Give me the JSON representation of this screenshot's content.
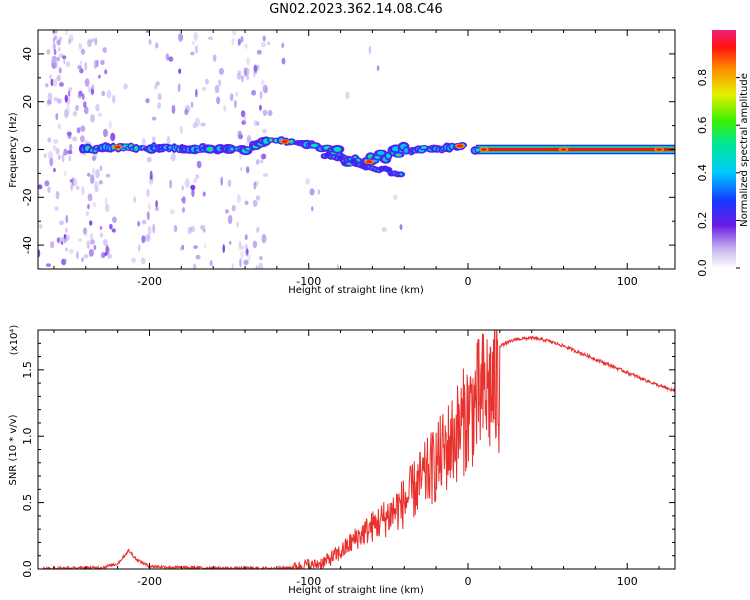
{
  "title": "GN02.2023.362.14.08.C46",
  "chart_data": [
    {
      "type": "heatmap",
      "xlabel": "Height of straight line (km)",
      "ylabel": "Frequency (Hz)",
      "xlim": [
        -270,
        130
      ],
      "ylim": [
        -50,
        50
      ],
      "xticks": [
        -200,
        -100,
        0,
        100
      ],
      "yticks": [
        -40,
        -20,
        0,
        20,
        40
      ],
      "colorbar": {
        "label": "Normalized spectral amplitude",
        "range": [
          0,
          1
        ],
        "ticks": [
          "0.0",
          "0.2",
          "0.4",
          "0.6",
          "0.8"
        ],
        "colormap": "rainbow-light-purple-to-magenta"
      },
      "ridge": {
        "x": [
          -240,
          -220,
          -200,
          -180,
          -160,
          -140,
          -125,
          -110,
          -95,
          -85,
          -75,
          -65,
          -55,
          -45,
          -35,
          -25,
          -15,
          -5,
          5,
          130
        ],
        "y": [
          0,
          1,
          0.5,
          0.5,
          0,
          0,
          4,
          3,
          2,
          0,
          -4,
          -6,
          -3,
          -1,
          -0.5,
          0.5,
          0.5,
          1.5,
          0,
          0
        ],
        "peak_x": [
          -220,
          -115,
          -62,
          -5,
          10,
          60,
          120
        ]
      }
    },
    {
      "type": "line",
      "xlabel": "Height of straight line (km)",
      "ylabel": "SNR (10 * v/v)",
      "y_multiplier": "(x10⁴)",
      "xlim": [
        -270,
        130
      ],
      "ylim": [
        0,
        1.8
      ],
      "xticks": [
        -200,
        -100,
        0,
        100
      ],
      "yticks": [
        0.0,
        0.5,
        1.0,
        1.5
      ],
      "series": [
        {
          "color": "#e8302c",
          "x": [
            -270,
            -250,
            -230,
            -220,
            -213,
            -208,
            -200,
            -180,
            -150,
            -120,
            -110,
            -100,
            -90,
            -80,
            -70,
            -60,
            -50,
            -40,
            -30,
            -20,
            -10,
            0,
            10,
            20,
            30,
            40,
            50,
            60,
            70,
            80,
            90,
            100,
            110,
            120,
            130
          ],
          "y": [
            0.0,
            0.005,
            0.01,
            0.04,
            0.14,
            0.07,
            0.02,
            0.01,
            0.005,
            0.005,
            0.01,
            0.04,
            0.08,
            0.16,
            0.28,
            0.38,
            0.48,
            0.6,
            0.78,
            0.95,
            1.15,
            1.38,
            1.58,
            1.68,
            1.73,
            1.74,
            1.72,
            1.68,
            1.63,
            1.58,
            1.53,
            1.48,
            1.43,
            1.38,
            1.34
          ]
        }
      ]
    }
  ]
}
